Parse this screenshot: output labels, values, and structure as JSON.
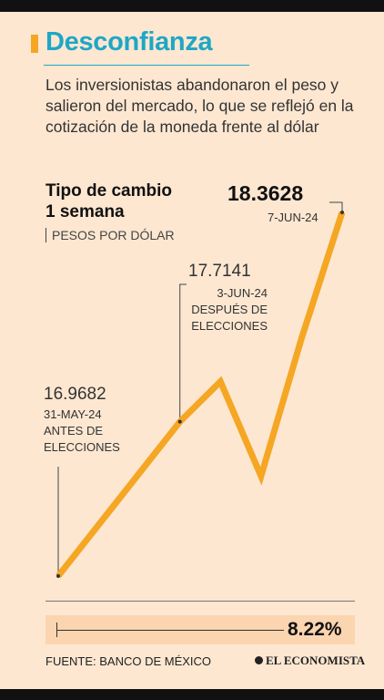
{
  "header": {
    "title": "Desconfianza",
    "subtitle": "Los inversionistas abandonaron el peso y salieron del mercado, lo que se reflejó en la cotización de la moneda frente al dólar"
  },
  "chart_data": {
    "type": "line",
    "title_line1": "Tipo de cambio",
    "title_line2": "1 semana",
    "unit_label": "PESOS POR DÓLAR",
    "ylim": [
      16.85,
      18.45
    ],
    "x_range": [
      0,
      7
    ],
    "series": [
      {
        "values": [
          16.9682,
          17.5601,
          17.7141,
          17.3512,
          17.8804,
          18.3628
        ]
      }
    ],
    "annotations": [
      {
        "index": 0,
        "value": "16.9682",
        "lines": [
          "31-MAY-24",
          "ANTES DE",
          "ELECCIONES"
        ]
      },
      {
        "index": 2,
        "value": "17.7141",
        "lines": [
          "3-JUN-24",
          "DESPUÉS DE",
          "ELECCIONES"
        ]
      },
      {
        "index": 5,
        "value": "18.3628",
        "lines": [
          "7-JUN-24"
        ]
      }
    ],
    "line_color": "#f5a623",
    "change_label": "8.22%"
  },
  "footer": {
    "source": "FUENTE: BANCO DE MÉXICO",
    "logo": "EL ECONOMISTA"
  }
}
